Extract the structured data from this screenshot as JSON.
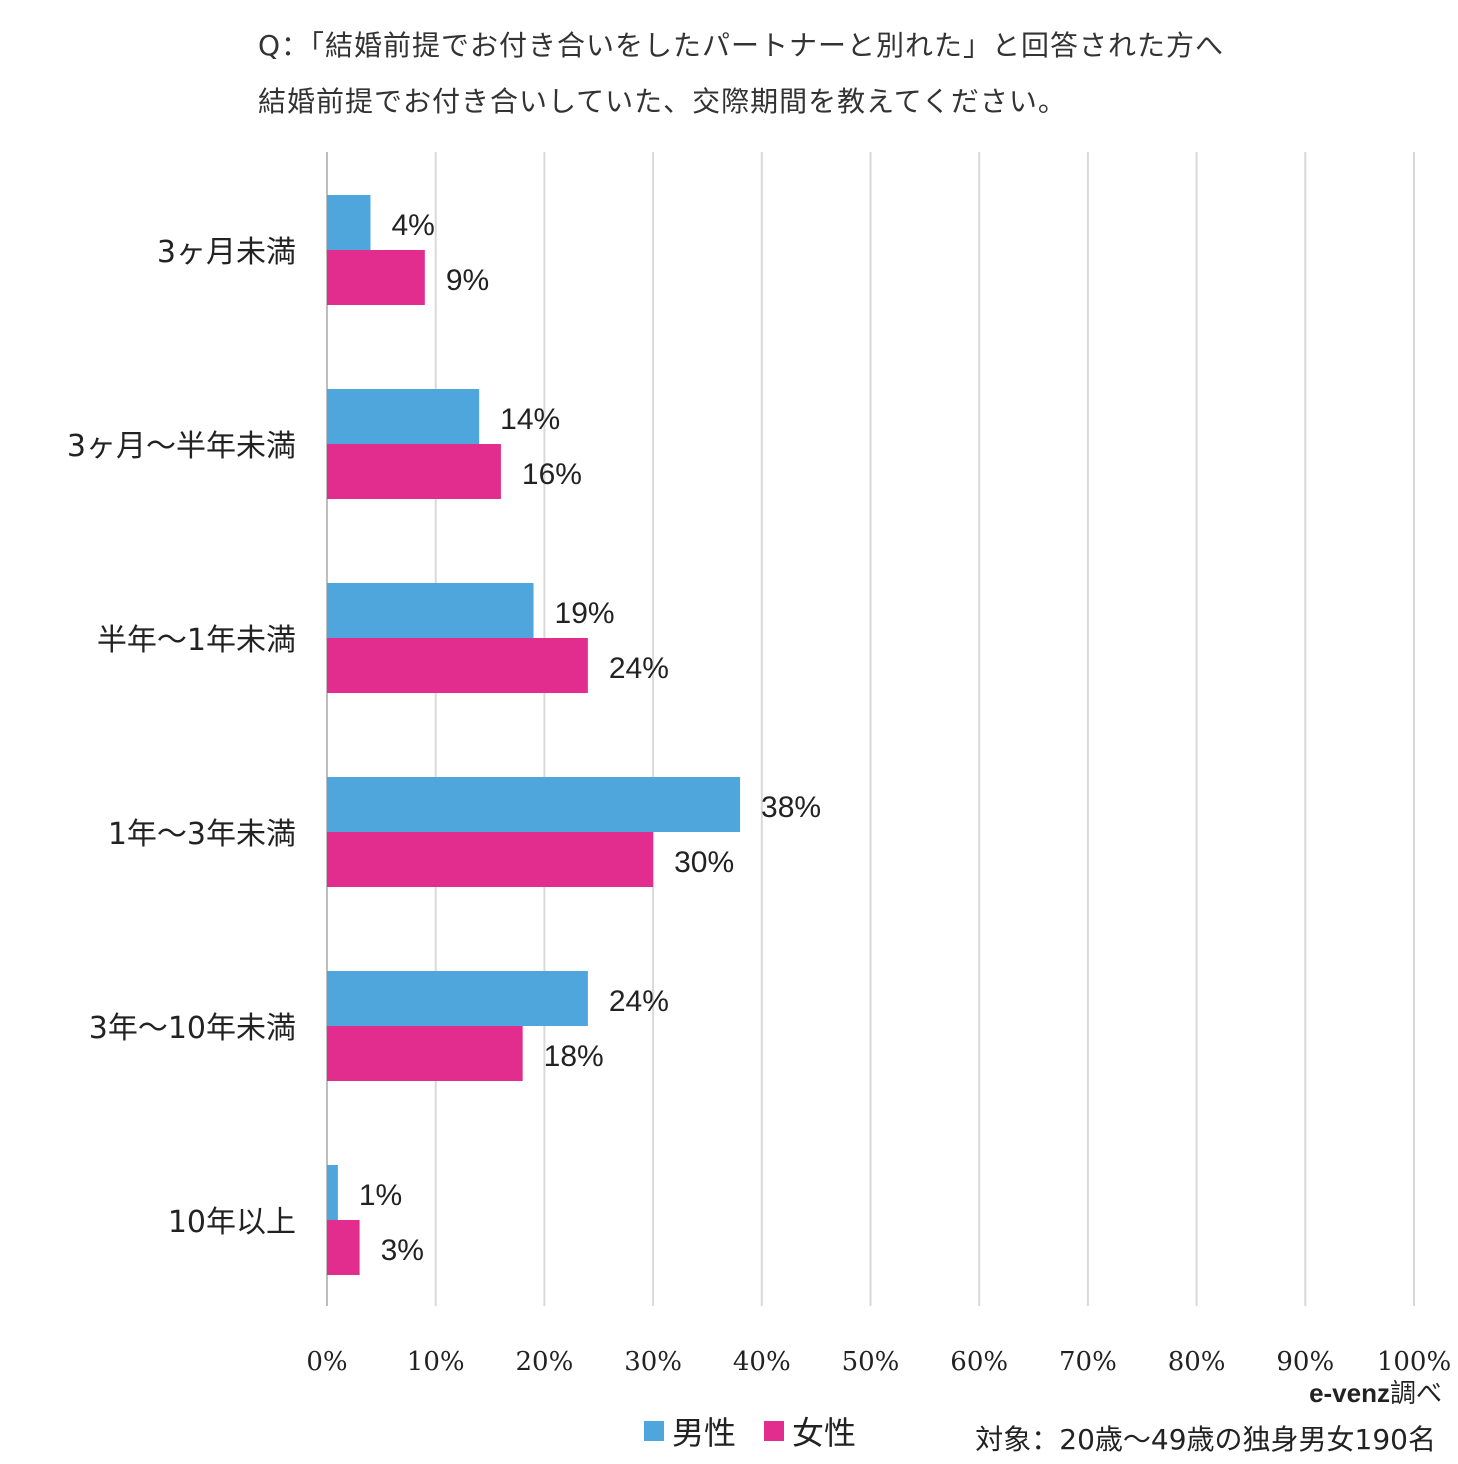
{
  "chart_data": {
    "type": "bar",
    "orientation": "horizontal",
    "title_lines": [
      "Q：「結婚前提でお付き合いをしたパートナーと別れた」と回答された方へ",
      "結婚前提でお付き合いしていた、交際期間を教えてください。"
    ],
    "categories": [
      "3ヶ月未満",
      "3ヶ月〜半年未満",
      "半年〜1年未満",
      "1年〜3年未満",
      "3年〜10年未満",
      "10年以上"
    ],
    "series": [
      {
        "name": "男性",
        "color": "#4ea6dc",
        "values": [
          4,
          14,
          19,
          38,
          24,
          1
        ],
        "labels": [
          "4%",
          "14%",
          "19%",
          "38%",
          "24%",
          "1%"
        ]
      },
      {
        "name": "女性",
        "color": "#e22d8f",
        "values": [
          9,
          16,
          24,
          30,
          18,
          3
        ],
        "labels": [
          "9%",
          "16%",
          "24%",
          "30%",
          "18%",
          "3%"
        ]
      }
    ],
    "xlim": [
      0,
      100
    ],
    "x_ticks": [
      "0%",
      "10%",
      "20%",
      "30%",
      "40%",
      "50%",
      "60%",
      "70%",
      "80%",
      "90%",
      "100%"
    ],
    "grid": true,
    "legend_position": "bottom-center",
    "source": {
      "brand": "e-venz",
      "suffix": "調べ"
    },
    "note": "対象：20歳〜49歳の独身男女190名"
  }
}
